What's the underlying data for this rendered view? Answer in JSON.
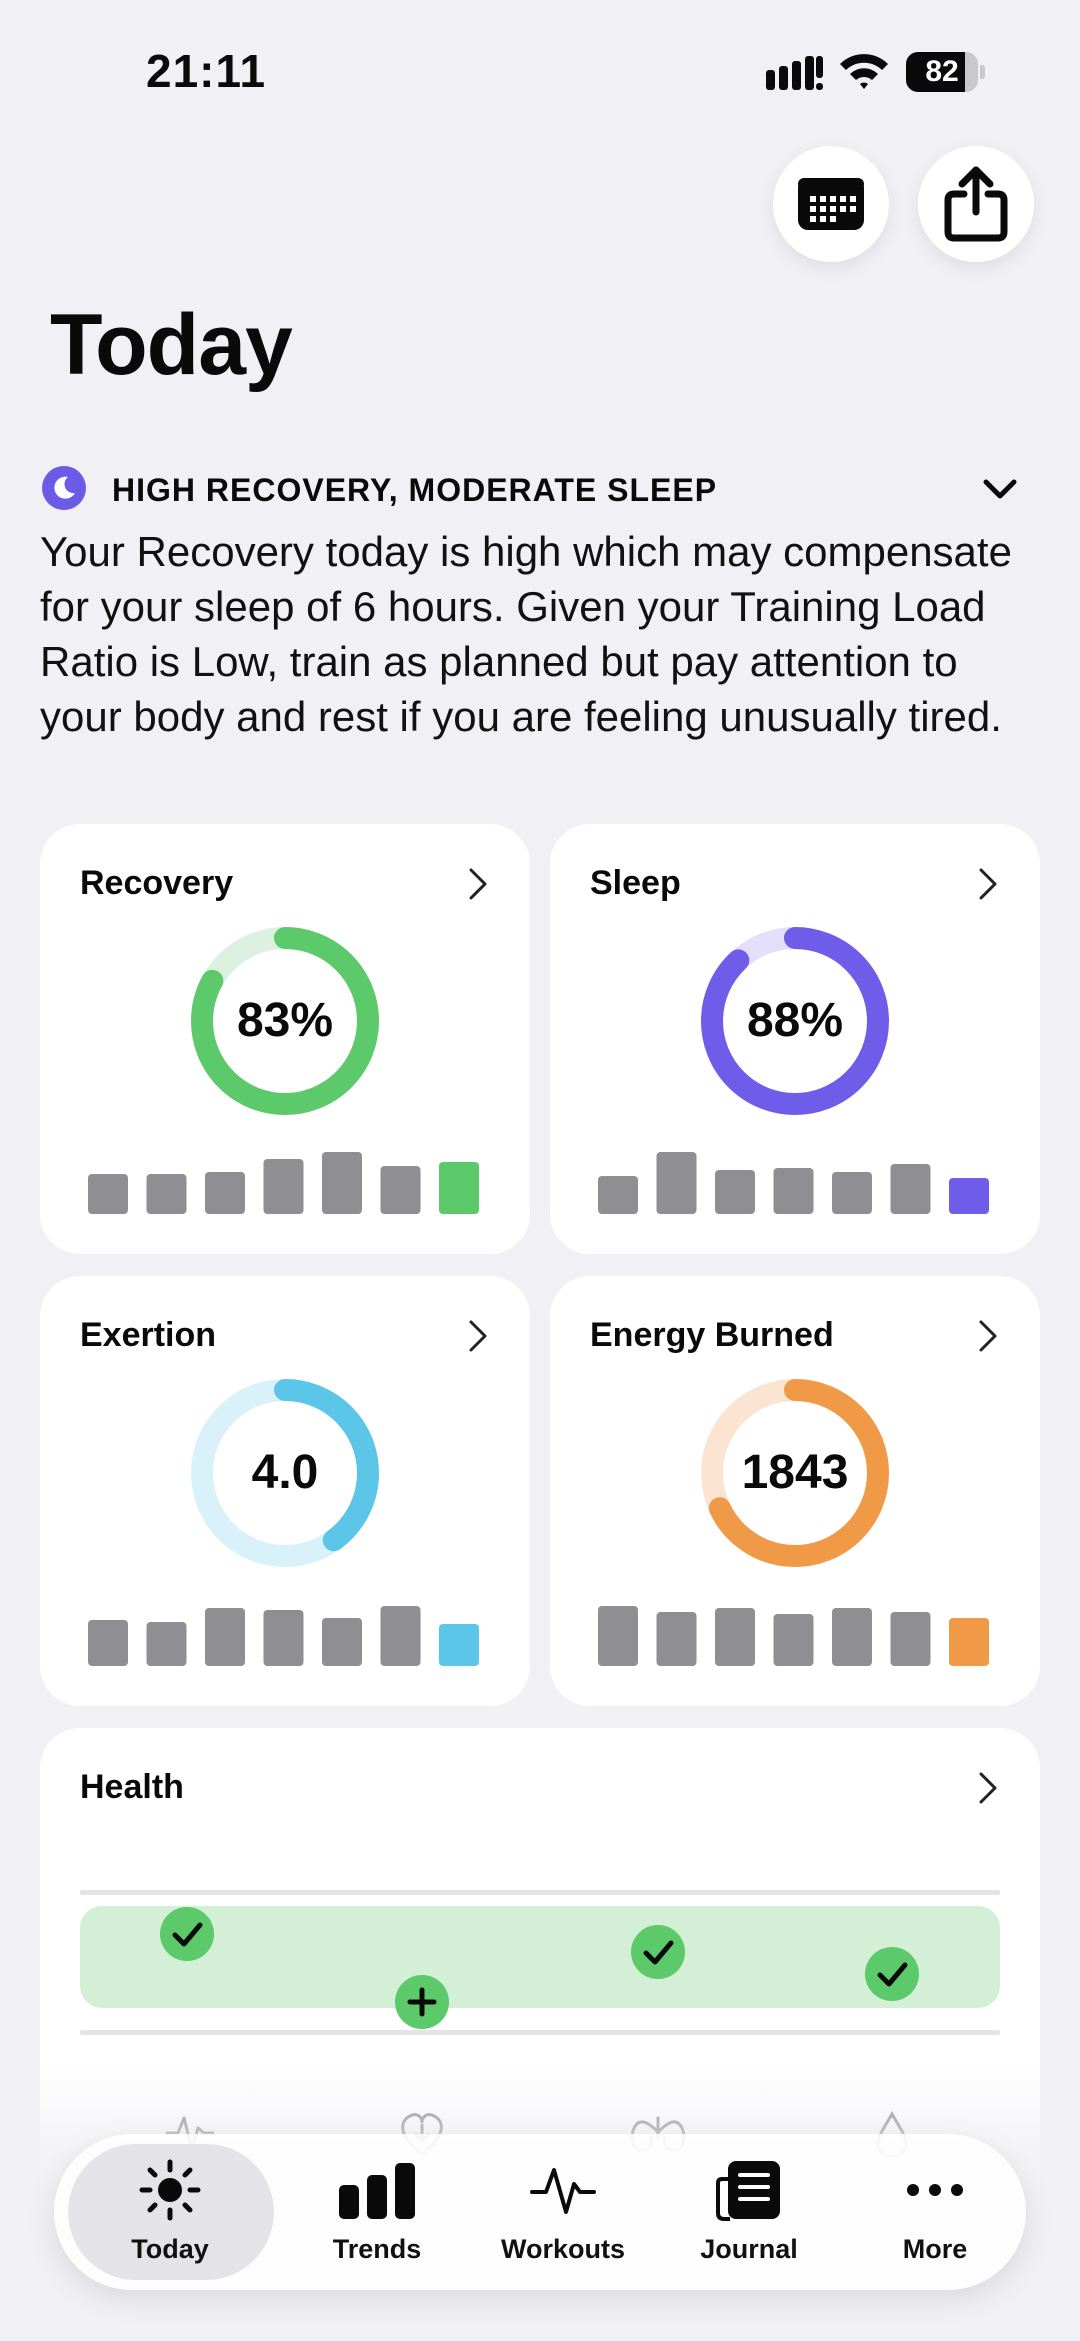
{
  "status_bar": {
    "time": "21:11",
    "battery": "82",
    "battery_level": 0.82
  },
  "page_title": "Today",
  "insight": {
    "title": "HIGH RECOVERY, MODERATE SLEEP",
    "body": "Your Recovery today is high which may compensate for your sleep of 6 hours. Given your Training Load Ratio is Low, train as planned but pay attention to your body and rest if you are feeling unusually tired."
  },
  "cards": {
    "recovery": {
      "title": "Recovery",
      "value": "83%",
      "progress": 0.83,
      "accent": "#5cc96b",
      "track": "#dcf1df",
      "bars": [
        40,
        40,
        42,
        55,
        62,
        48,
        52
      ]
    },
    "sleep": {
      "title": "Sleep",
      "value": "88%",
      "progress": 0.88,
      "accent": "#6f5ce8",
      "track": "#e4e0fb",
      "bars": [
        38,
        62,
        44,
        46,
        42,
        50,
        36
      ]
    },
    "exertion": {
      "title": "Exertion",
      "value": "4.0",
      "progress": 0.4,
      "accent": "#5cc6e8",
      "track": "#d9f1f9",
      "bars": [
        46,
        44,
        58,
        56,
        48,
        60,
        42
      ]
    },
    "energy": {
      "title": "Energy Burned",
      "value": "1843",
      "progress": 0.68,
      "accent": "#f09a48",
      "track": "#fbe5d2",
      "bars": [
        60,
        54,
        58,
        52,
        58,
        54,
        48
      ]
    }
  },
  "health": {
    "title": "Health"
  },
  "tabs": [
    {
      "label": "Today"
    },
    {
      "label": "Trends"
    },
    {
      "label": "Workouts"
    },
    {
      "label": "Journal"
    },
    {
      "label": "More"
    }
  ]
}
